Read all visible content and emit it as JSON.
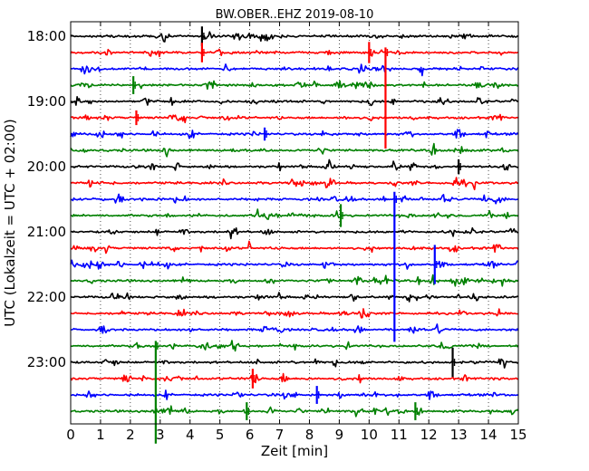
{
  "chart_data": {
    "type": "line",
    "title": "BW.OBER..EHZ 2019-08-10",
    "xlabel": "Zeit  [min]",
    "ylabel": "UTC (Lokalzeit = UTC + 02:00)",
    "xlim": [
      0,
      15
    ],
    "x_ticks": [
      "0",
      "1",
      "2",
      "3",
      "4",
      "5",
      "6",
      "7",
      "8",
      "9",
      "10",
      "11",
      "12",
      "13",
      "14",
      "15"
    ],
    "y_ticks": [
      "18:00",
      "19:00",
      "20:00",
      "21:00",
      "22:00",
      "23:00"
    ],
    "trace_interval_min": 15,
    "trace_start": "18:00",
    "trace_colors": [
      "#000000",
      "#ff0000",
      "#0000ff",
      "#008000"
    ],
    "grid": "vertical dotted at each minute",
    "events": [
      {
        "trace": 0,
        "x": 4.4,
        "amp": 1.2
      },
      {
        "trace": 1,
        "x": 4.4,
        "amp": 1.2
      },
      {
        "trace": 1,
        "x": 10.0,
        "amp": 1.3
      },
      {
        "trace": 1,
        "x": 10.55,
        "amp": 6.2
      },
      {
        "trace": 3,
        "x": 2.1,
        "amp": 1.1
      },
      {
        "trace": 5,
        "x": 2.2,
        "amp": 0.9
      },
      {
        "trace": 6,
        "x": 6.5,
        "amp": 0.8
      },
      {
        "trace": 8,
        "x": 13.0,
        "amp": 0.9
      },
      {
        "trace": 10,
        "x": 10.85,
        "amp": 9.2
      },
      {
        "trace": 11,
        "x": 9.05,
        "amp": 1.4
      },
      {
        "trace": 14,
        "x": 12.2,
        "amp": 2.4
      },
      {
        "trace": 19,
        "x": 2.85,
        "amp": 6.3
      },
      {
        "trace": 20,
        "x": 12.8,
        "amp": 1.8
      },
      {
        "trace": 21,
        "x": 6.1,
        "amp": 1.2
      },
      {
        "trace": 22,
        "x": 8.25,
        "amp": 1.1
      },
      {
        "trace": 23,
        "x": 5.9,
        "amp": 1.1
      },
      {
        "trace": 23,
        "x": 11.55,
        "amp": 1.1
      }
    ]
  }
}
